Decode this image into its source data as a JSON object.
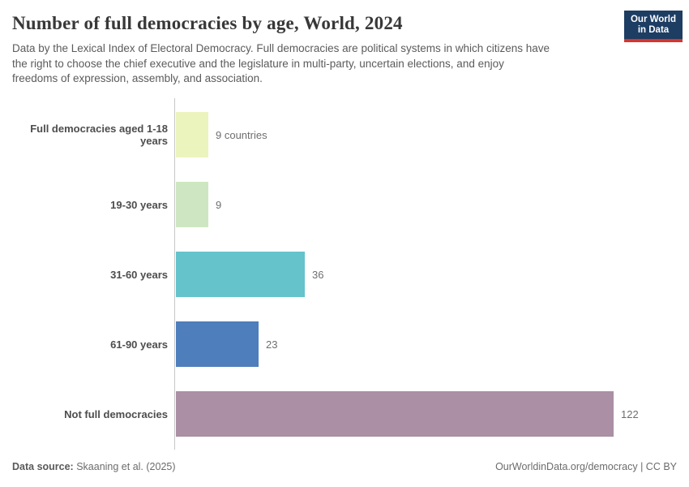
{
  "header": {
    "title": "Number of full democracies by age, World, 2024",
    "subtitle_lines": [
      "Data by the Lexical Index of Electoral Democracy. Full democracies are political systems in which citizens have",
      "the right to choose the chief executive and the legislature in multi-party, uncertain elections, and enjoy",
      "freedoms of expression, assembly, and association."
    ],
    "logo": {
      "line1": "Our World",
      "line2": "in Data",
      "bg_color": "#1d3d63",
      "accent_color": "#d7352e"
    }
  },
  "chart_data": {
    "type": "bar",
    "orientation": "horizontal",
    "title": "Number of full democracies by age, World, 2024",
    "categories": [
      "Full democracies aged 1-18 years",
      "19-30 years",
      "31-60 years",
      "61-90 years",
      "Not full democracies"
    ],
    "values": [
      9,
      9,
      36,
      23,
      122
    ],
    "value_labels": [
      "9 countries",
      "9",
      "36",
      "23",
      "122"
    ],
    "bar_colors": [
      "#ecf4be",
      "#cee7c2",
      "#65c3cc",
      "#4e7ebc",
      "#ab8fa4"
    ],
    "xlim": [
      0,
      122
    ],
    "xlabel": "",
    "ylabel": "",
    "grid": false,
    "legend": "none",
    "unit": "countries"
  },
  "footer": {
    "source_label": "Data source:",
    "source_value": " Skaaning et al. (2025)",
    "url": "OurWorldinData.org/democracy",
    "divider": " | ",
    "license": "CC BY"
  }
}
